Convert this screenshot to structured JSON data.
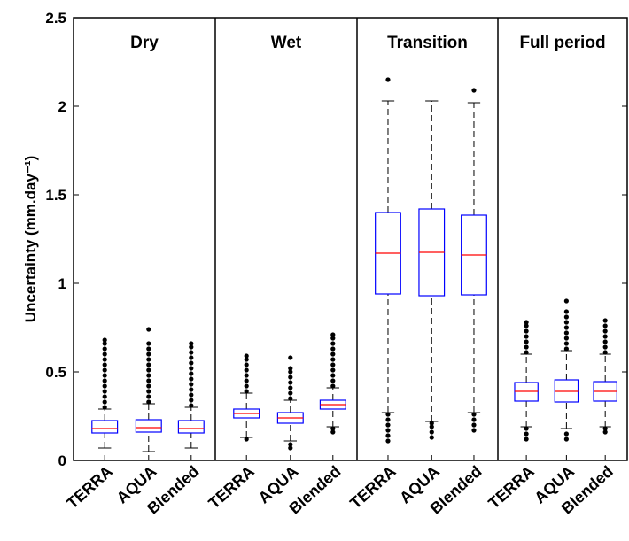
{
  "chart_data": [
    {
      "type": "box",
      "title": "Dry",
      "ylabel": "Uncertainty (mm.day⁻¹)",
      "ylim": [
        0,
        2.5
      ],
      "yticks": [
        0,
        0.5,
        1,
        1.5,
        2,
        2.5
      ],
      "box_color": "#0000ff",
      "median_color": "#ff0000",
      "categories": [
        "TERRA",
        "AQUA",
        "Blended"
      ],
      "boxes": [
        {
          "whisker_low": 0.07,
          "q1": 0.155,
          "median": 0.18,
          "q3": 0.225,
          "whisker_high": 0.29,
          "outliers": [
            0.3,
            0.33,
            0.36,
            0.39,
            0.42,
            0.45,
            0.48,
            0.51,
            0.54,
            0.57,
            0.6,
            0.63,
            0.66,
            0.68
          ]
        },
        {
          "whisker_low": 0.05,
          "q1": 0.16,
          "median": 0.185,
          "q3": 0.23,
          "whisker_high": 0.32,
          "outliers": [
            0.33,
            0.36,
            0.39,
            0.42,
            0.45,
            0.48,
            0.51,
            0.54,
            0.57,
            0.6,
            0.63,
            0.66,
            0.74
          ]
        },
        {
          "whisker_low": 0.07,
          "q1": 0.155,
          "median": 0.18,
          "q3": 0.225,
          "whisker_high": 0.3,
          "outliers": [
            0.31,
            0.34,
            0.37,
            0.4,
            0.43,
            0.46,
            0.49,
            0.52,
            0.55,
            0.58,
            0.61,
            0.64,
            0.66
          ]
        }
      ]
    },
    {
      "type": "box",
      "title": "Wet",
      "ylim": [
        0,
        2.5
      ],
      "box_color": "#0000ff",
      "median_color": "#ff0000",
      "categories": [
        "TERRA",
        "AQUA",
        "Blended"
      ],
      "boxes": [
        {
          "whisker_low": 0.13,
          "q1": 0.24,
          "median": 0.265,
          "q3": 0.29,
          "whisker_high": 0.38,
          "outliers": [
            0.12,
            0.39,
            0.42,
            0.45,
            0.48,
            0.51,
            0.54,
            0.57,
            0.59
          ]
        },
        {
          "whisker_low": 0.11,
          "q1": 0.21,
          "median": 0.24,
          "q3": 0.27,
          "whisker_high": 0.34,
          "outliers": [
            0.07,
            0.09,
            0.35,
            0.38,
            0.41,
            0.44,
            0.47,
            0.5,
            0.52,
            0.58
          ]
        },
        {
          "whisker_low": 0.19,
          "q1": 0.29,
          "median": 0.315,
          "q3": 0.34,
          "whisker_high": 0.41,
          "outliers": [
            0.16,
            0.18,
            0.42,
            0.45,
            0.48,
            0.51,
            0.54,
            0.57,
            0.6,
            0.63,
            0.66,
            0.69,
            0.71
          ]
        }
      ]
    },
    {
      "type": "box",
      "title": "Transition",
      "ylim": [
        0,
        2.5
      ],
      "box_color": "#0000ff",
      "median_color": "#ff0000",
      "categories": [
        "TERRA",
        "AQUA",
        "Blended"
      ],
      "boxes": [
        {
          "whisker_low": 0.27,
          "q1": 0.94,
          "median": 1.17,
          "q3": 1.4,
          "whisker_high": 2.03,
          "outliers": [
            0.11,
            0.14,
            0.17,
            0.2,
            0.23,
            0.26,
            2.15
          ]
        },
        {
          "whisker_low": 0.22,
          "q1": 0.93,
          "median": 1.175,
          "q3": 1.42,
          "whisker_high": 2.03,
          "outliers": [
            0.13,
            0.16,
            0.19,
            0.21
          ]
        },
        {
          "whisker_low": 0.27,
          "q1": 0.935,
          "median": 1.16,
          "q3": 1.385,
          "whisker_high": 2.02,
          "outliers": [
            0.17,
            0.2,
            0.23,
            0.26,
            2.09
          ]
        }
      ]
    },
    {
      "type": "box",
      "title": "Full period",
      "ylim": [
        0,
        2.5
      ],
      "box_color": "#0000ff",
      "median_color": "#ff0000",
      "categories": [
        "TERRA",
        "AQUA",
        "Blended"
      ],
      "boxes": [
        {
          "whisker_low": 0.19,
          "q1": 0.335,
          "median": 0.39,
          "q3": 0.44,
          "whisker_high": 0.6,
          "outliers": [
            0.12,
            0.15,
            0.18,
            0.61,
            0.64,
            0.67,
            0.7,
            0.73,
            0.76,
            0.78
          ]
        },
        {
          "whisker_low": 0.18,
          "q1": 0.33,
          "median": 0.39,
          "q3": 0.455,
          "whisker_high": 0.62,
          "outliers": [
            0.12,
            0.15,
            0.63,
            0.66,
            0.69,
            0.72,
            0.75,
            0.78,
            0.81,
            0.84,
            0.9
          ]
        },
        {
          "whisker_low": 0.19,
          "q1": 0.335,
          "median": 0.39,
          "q3": 0.445,
          "whisker_high": 0.6,
          "outliers": [
            0.16,
            0.18,
            0.61,
            0.64,
            0.67,
            0.7,
            0.73,
            0.76,
            0.79
          ]
        }
      ]
    }
  ]
}
